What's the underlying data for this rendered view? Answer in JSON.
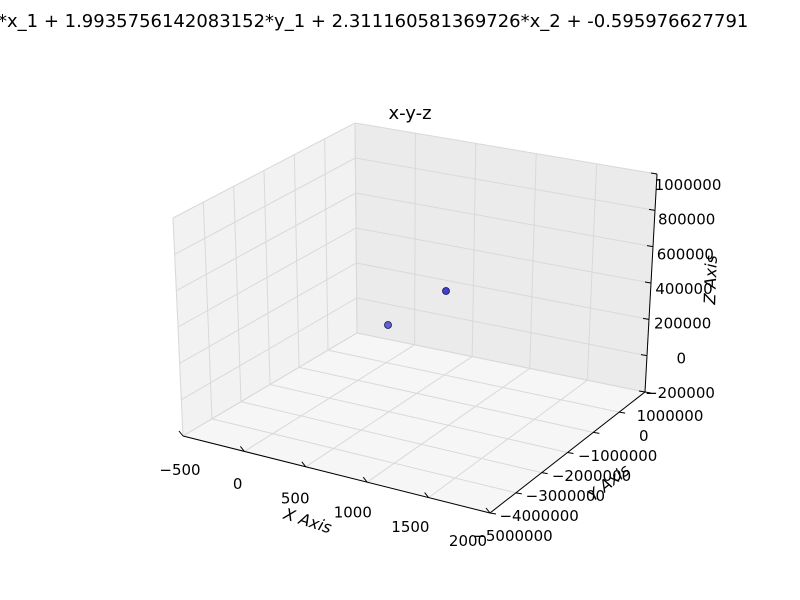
{
  "chart_data": {
    "type": "scatter",
    "suptitle": "*x_1 + 1.9935756142083152*y_1 + 2.311160581369726*x_2 + -0.595976627791",
    "title": "x-y-z",
    "xlabel": "X Axis",
    "ylabel": "Y Axis",
    "zlabel": "Z Axis",
    "x_ticks": [
      "−500",
      "0",
      "500",
      "1000",
      "1500",
      "2000"
    ],
    "y_ticks": [
      "−5000000",
      "−4000000",
      "−3000000",
      "−2000000",
      "−1000000",
      "0",
      "1000000"
    ],
    "z_ticks": [
      "−200000",
      "0",
      "200000",
      "400000",
      "600000",
      "800000",
      "1000000"
    ],
    "xlim": [
      -500,
      2000
    ],
    "ylim": [
      -5000000,
      1000000
    ],
    "zlim": [
      -200000,
      1000000
    ],
    "grid": true,
    "point_color": "#4040c8",
    "points": [
      {
        "x": 0,
        "y": 0,
        "z": 200000
      },
      {
        "x": 500,
        "y": 0,
        "z": 400000
      }
    ]
  }
}
